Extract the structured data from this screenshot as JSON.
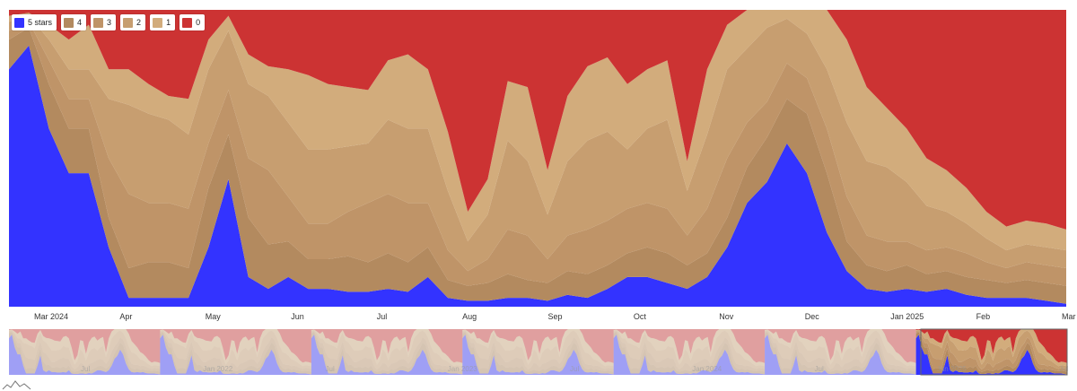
{
  "chart_data": {
    "type": "area",
    "stacked": true,
    "legend_position": "top-left",
    "grid": false,
    "x": [
      "2024-02-23",
      "2024-03-01",
      "2024-03-08",
      "2024-03-15",
      "2024-03-22",
      "2024-03-29",
      "2024-04-05",
      "2024-04-12",
      "2024-04-19",
      "2024-04-26",
      "2024-05-03",
      "2024-05-10",
      "2024-05-17",
      "2024-05-24",
      "2024-05-31",
      "2024-06-07",
      "2024-06-14",
      "2024-06-21",
      "2024-06-28",
      "2024-07-05",
      "2024-07-12",
      "2024-07-19",
      "2024-07-26",
      "2024-08-02",
      "2024-08-09",
      "2024-08-16",
      "2024-08-23",
      "2024-08-30",
      "2024-09-06",
      "2024-09-13",
      "2024-09-20",
      "2024-09-27",
      "2024-10-04",
      "2024-10-11",
      "2024-10-18",
      "2024-10-25",
      "2024-11-01",
      "2024-11-08",
      "2024-11-15",
      "2024-11-22",
      "2024-11-29",
      "2024-12-06",
      "2024-12-13",
      "2024-12-20",
      "2024-12-27",
      "2025-01-03",
      "2025-01-10",
      "2025-01-17",
      "2025-01-24",
      "2025-01-31",
      "2025-02-07",
      "2025-02-14",
      "2025-02-21",
      "2025-02-28"
    ],
    "x_tick_labels": [
      "Mar 2024",
      "Apr",
      "May",
      "Jun",
      "Jul",
      "Aug",
      "Sep",
      "Oct",
      "Nov",
      "Dec",
      "Jan 2025",
      "Feb",
      "Mar"
    ],
    "ylim": [
      0,
      100
    ],
    "series": [
      {
        "name": "5 stars",
        "color": "#3333ff",
        "values": [
          80,
          88,
          60,
          45,
          45,
          20,
          3,
          3,
          3,
          3,
          20,
          43,
          10,
          6,
          10,
          6,
          6,
          5,
          5,
          6,
          5,
          10,
          3,
          2,
          2,
          3,
          3,
          2,
          4,
          3,
          6,
          10,
          10,
          8,
          6,
          10,
          20,
          35,
          42,
          55,
          45,
          25,
          12,
          6,
          5,
          6,
          5,
          6,
          4,
          3,
          3,
          3,
          2,
          1
        ]
      },
      {
        "name": "4",
        "color": "#b38a5f",
        "values": [
          10,
          6,
          15,
          15,
          15,
          10,
          10,
          12,
          12,
          10,
          20,
          15,
          20,
          15,
          12,
          10,
          10,
          12,
          10,
          12,
          10,
          10,
          6,
          5,
          6,
          8,
          6,
          6,
          8,
          8,
          8,
          8,
          10,
          10,
          8,
          8,
          10,
          12,
          15,
          15,
          20,
          20,
          10,
          8,
          7,
          8,
          6,
          6,
          6,
          6,
          5,
          6,
          6,
          6
        ]
      },
      {
        "name": "3",
        "color": "#bf9468",
        "values": [
          3,
          2,
          8,
          10,
          10,
          20,
          25,
          20,
          20,
          20,
          15,
          15,
          20,
          25,
          15,
          12,
          12,
          15,
          20,
          20,
          20,
          15,
          10,
          5,
          8,
          15,
          15,
          8,
          12,
          15,
          15,
          15,
          15,
          15,
          10,
          15,
          20,
          15,
          12,
          12,
          12,
          15,
          15,
          10,
          10,
          8,
          8,
          8,
          8,
          6,
          5,
          6,
          6,
          6
        ]
      },
      {
        "name": "2",
        "color": "#c79e70",
        "values": [
          3,
          2,
          7,
          10,
          10,
          20,
          30,
          30,
          28,
          25,
          25,
          20,
          25,
          25,
          25,
          25,
          25,
          22,
          20,
          25,
          25,
          25,
          20,
          10,
          15,
          30,
          25,
          15,
          25,
          30,
          30,
          20,
          25,
          30,
          15,
          25,
          30,
          25,
          25,
          15,
          15,
          20,
          25,
          25,
          25,
          20,
          15,
          12,
          10,
          8,
          6,
          6,
          6,
          6
        ]
      },
      {
        "name": "1",
        "color": "#d2ac7c",
        "values": [
          2,
          1,
          5,
          10,
          15,
          10,
          12,
          10,
          8,
          12,
          10,
          5,
          10,
          10,
          18,
          25,
          22,
          20,
          18,
          20,
          25,
          20,
          20,
          10,
          12,
          20,
          25,
          15,
          22,
          25,
          25,
          22,
          20,
          20,
          10,
          22,
          15,
          13,
          6,
          3,
          8,
          20,
          28,
          25,
          20,
          18,
          16,
          14,
          12,
          9,
          8,
          8,
          8,
          7
        ]
      },
      {
        "name": "0",
        "color": "#cc3333",
        "values": [
          2,
          1,
          5,
          10,
          5,
          20,
          20,
          25,
          29,
          30,
          10,
          2,
          15,
          19,
          20,
          22,
          25,
          26,
          27,
          17,
          15,
          20,
          41,
          68,
          57,
          24,
          26,
          54,
          29,
          19,
          16,
          25,
          20,
          17,
          51,
          20,
          5,
          0,
          0,
          0,
          0,
          0,
          10,
          26,
          33,
          40,
          50,
          54,
          60,
          68,
          73,
          71,
          72,
          74
        ]
      }
    ]
  },
  "navigator": {
    "x_tick_labels": [
      "Jul",
      "Jan 2022",
      "Jul",
      "Jan 2023",
      "Jul",
      "Jan 2024",
      "Jul",
      "Jan 2025",
      "Jul"
    ]
  }
}
